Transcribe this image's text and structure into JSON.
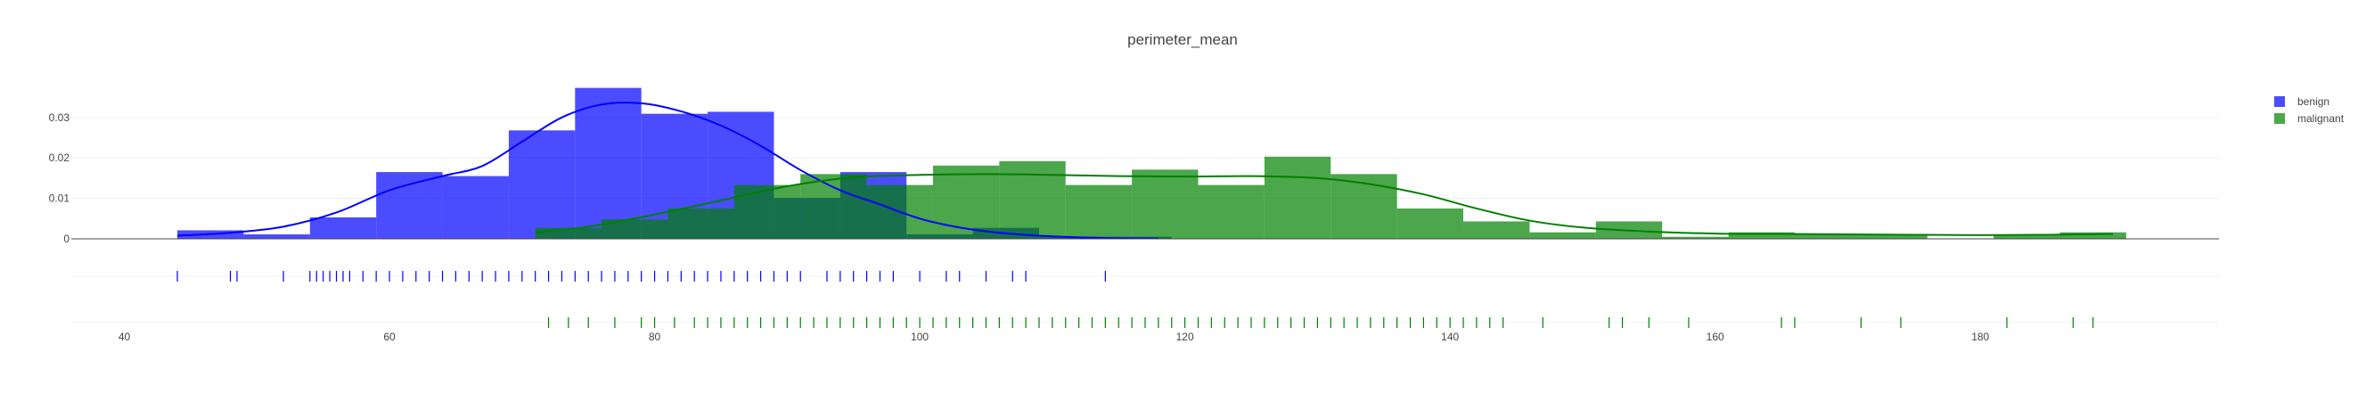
{
  "chart_data": {
    "type": "histogram",
    "title": "perimeter_mean",
    "xlabel": "",
    "ylabel": "",
    "xlim": [
      36,
      198
    ],
    "ylim": [
      0,
      0.037
    ],
    "yticks": [
      0,
      0.01,
      0.02,
      0.03
    ],
    "yticklabels": [
      "0",
      "0.01",
      "0.02",
      "0.03"
    ],
    "xticks": [
      40,
      60,
      80,
      100,
      120,
      140,
      160,
      180
    ],
    "xticklabels": [
      "40",
      "60",
      "80",
      "100",
      "120",
      "140",
      "160",
      "180"
    ],
    "grid": true,
    "legend_position": "top-right",
    "series": [
      {
        "name": "benign",
        "color": "#0000ff",
        "bins": [
          {
            "x0": 44,
            "x1": 49,
            "density": 0.0021
          },
          {
            "x0": 49,
            "x1": 54,
            "density": 0.0011
          },
          {
            "x0": 54,
            "x1": 59,
            "density": 0.0053
          },
          {
            "x0": 59,
            "x1": 64,
            "density": 0.0165
          },
          {
            "x0": 64,
            "x1": 69,
            "density": 0.0155
          },
          {
            "x0": 69,
            "x1": 74,
            "density": 0.0268
          },
          {
            "x0": 74,
            "x1": 79,
            "density": 0.0373
          },
          {
            "x0": 79,
            "x1": 84,
            "density": 0.0309
          },
          {
            "x0": 84,
            "x1": 89,
            "density": 0.0314
          },
          {
            "x0": 89,
            "x1": 94,
            "density": 0.0101
          },
          {
            "x0": 94,
            "x1": 99,
            "density": 0.0165
          },
          {
            "x0": 99,
            "x1": 104,
            "density": 0.0011
          },
          {
            "x0": 104,
            "x1": 109,
            "density": 0.0027
          },
          {
            "x0": 109,
            "x1": 114,
            "density": 0.0005
          },
          {
            "x0": 114,
            "x1": 119,
            "density": 0.0005
          }
        ],
        "kde": [
          [
            44,
            0.0008
          ],
          [
            48,
            0.0015
          ],
          [
            52,
            0.003
          ],
          [
            56,
            0.0065
          ],
          [
            60,
            0.012
          ],
          [
            64,
            0.0155
          ],
          [
            67,
            0.018
          ],
          [
            70,
            0.024
          ],
          [
            73,
            0.03
          ],
          [
            76,
            0.0332
          ],
          [
            79,
            0.0335
          ],
          [
            82,
            0.0315
          ],
          [
            85,
            0.028
          ],
          [
            88,
            0.023
          ],
          [
            91,
            0.017
          ],
          [
            94,
            0.012
          ],
          [
            97,
            0.0085
          ],
          [
            100,
            0.005
          ],
          [
            103,
            0.0028
          ],
          [
            106,
            0.0015
          ],
          [
            110,
            0.0006
          ],
          [
            114,
            0.0002
          ],
          [
            118,
            0.0001
          ]
        ],
        "rug": [
          44,
          48,
          48.5,
          52,
          54,
          54.5,
          55,
          55.5,
          56,
          56.5,
          57,
          58,
          59,
          60,
          61,
          62,
          63,
          64,
          65,
          66,
          67,
          68,
          69,
          70,
          71,
          72,
          73,
          74,
          75,
          76,
          77,
          78,
          79,
          80,
          81,
          82,
          83,
          84,
          85,
          86,
          87,
          88,
          89,
          90,
          91,
          93,
          94,
          95,
          96,
          97,
          98,
          100,
          102,
          103,
          105,
          107,
          108,
          114
        ]
      },
      {
        "name": "malignant",
        "color": "#008000",
        "bins": [
          {
            "x0": 71,
            "x1": 76,
            "density": 0.0027
          },
          {
            "x0": 76,
            "x1": 81,
            "density": 0.0048
          },
          {
            "x0": 81,
            "x1": 86,
            "density": 0.0075
          },
          {
            "x0": 86,
            "x1": 91,
            "density": 0.0133
          },
          {
            "x0": 91,
            "x1": 96,
            "density": 0.016
          },
          {
            "x0": 96,
            "x1": 101,
            "density": 0.0133
          },
          {
            "x0": 101,
            "x1": 106,
            "density": 0.0181
          },
          {
            "x0": 106,
            "x1": 111,
            "density": 0.0192
          },
          {
            "x0": 111,
            "x1": 116,
            "density": 0.0133
          },
          {
            "x0": 116,
            "x1": 121,
            "density": 0.0171
          },
          {
            "x0": 121,
            "x1": 126,
            "density": 0.0133
          },
          {
            "x0": 126,
            "x1": 131,
            "density": 0.0203
          },
          {
            "x0": 131,
            "x1": 136,
            "density": 0.016
          },
          {
            "x0": 136,
            "x1": 141,
            "density": 0.0075
          },
          {
            "x0": 141,
            "x1": 146,
            "density": 0.0043
          },
          {
            "x0": 146,
            "x1": 151,
            "density": 0.0016
          },
          {
            "x0": 151,
            "x1": 156,
            "density": 0.0043
          },
          {
            "x0": 156,
            "x1": 161,
            "density": 0.0005
          },
          {
            "x0": 161,
            "x1": 166,
            "density": 0.0016
          },
          {
            "x0": 166,
            "x1": 171,
            "density": 0.0011
          },
          {
            "x0": 171,
            "x1": 176,
            "density": 0.0011
          },
          {
            "x0": 176,
            "x1": 181,
            "density": 0.0
          },
          {
            "x0": 181,
            "x1": 186,
            "density": 0.0011
          },
          {
            "x0": 186,
            "x1": 191,
            "density": 0.0016
          }
        ],
        "kde": [
          [
            71,
            0.0015
          ],
          [
            75,
            0.003
          ],
          [
            80,
            0.006
          ],
          [
            85,
            0.0095
          ],
          [
            90,
            0.013
          ],
          [
            95,
            0.0152
          ],
          [
            100,
            0.0158
          ],
          [
            105,
            0.016
          ],
          [
            110,
            0.0158
          ],
          [
            115,
            0.0155
          ],
          [
            120,
            0.0154
          ],
          [
            125,
            0.0155
          ],
          [
            130,
            0.015
          ],
          [
            134,
            0.0135
          ],
          [
            138,
            0.011
          ],
          [
            142,
            0.0075
          ],
          [
            146,
            0.0045
          ],
          [
            150,
            0.0028
          ],
          [
            155,
            0.0018
          ],
          [
            160,
            0.0013
          ],
          [
            165,
            0.0012
          ],
          [
            170,
            0.0011
          ],
          [
            175,
            0.001
          ],
          [
            180,
            0.0009
          ],
          [
            185,
            0.001
          ],
          [
            190,
            0.0012
          ]
        ],
        "rug": [
          72,
          73.5,
          75,
          77,
          79,
          80,
          81.5,
          83,
          84,
          85,
          86,
          87,
          88,
          89,
          90,
          91,
          92,
          93,
          94,
          95,
          96,
          97,
          98,
          99,
          100,
          101,
          102,
          103,
          104,
          105,
          106,
          107,
          108,
          109,
          110,
          111,
          112,
          113,
          114,
          115,
          116,
          117,
          118,
          119,
          120,
          121,
          122,
          123,
          124,
          125,
          126,
          127,
          128,
          129,
          130,
          131,
          132,
          133,
          134,
          135,
          136,
          137,
          138,
          139,
          140,
          141,
          142,
          143,
          144,
          147,
          152,
          153,
          155,
          158,
          165,
          166,
          171,
          174,
          182,
          187,
          188.5
        ]
      }
    ]
  }
}
